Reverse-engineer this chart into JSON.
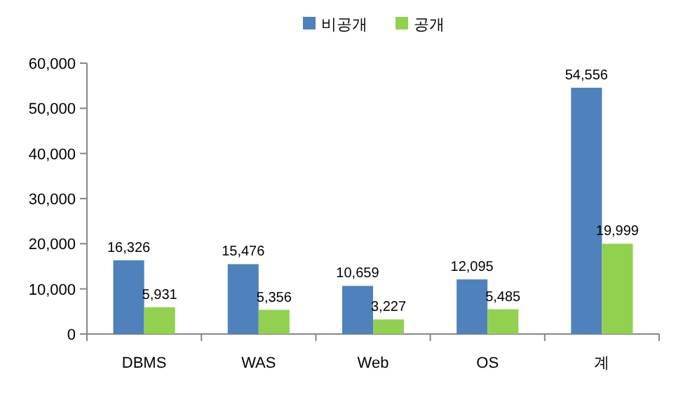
{
  "chart_data": {
    "type": "bar",
    "categories": [
      "DBMS",
      "WAS",
      "Web",
      "OS",
      "계"
    ],
    "series": [
      {
        "name": "비공개",
        "color": "#4f81bd",
        "values": [
          16326,
          15476,
          10659,
          12095,
          54556
        ],
        "value_labels": [
          "16,326",
          "15,476",
          "10,659",
          "12,095",
          "54,556"
        ]
      },
      {
        "name": "공개",
        "color": "#92d050",
        "values": [
          5931,
          5356,
          3227,
          5485,
          19999
        ],
        "value_labels": [
          "5,931",
          "5,356",
          "3,227",
          "5,485",
          "19,999"
        ]
      }
    ],
    "ylim": [
      0,
      60000
    ],
    "yticks": [
      {
        "value": 0,
        "label": "0"
      },
      {
        "value": 10000,
        "label": "10,000"
      },
      {
        "value": 20000,
        "label": "20,000"
      },
      {
        "value": 30000,
        "label": "30,000"
      },
      {
        "value": 40000,
        "label": "40,000"
      },
      {
        "value": 50000,
        "label": "50,000"
      },
      {
        "value": 60000,
        "label": "60,000"
      }
    ],
    "legend": "top",
    "grid": false
  }
}
